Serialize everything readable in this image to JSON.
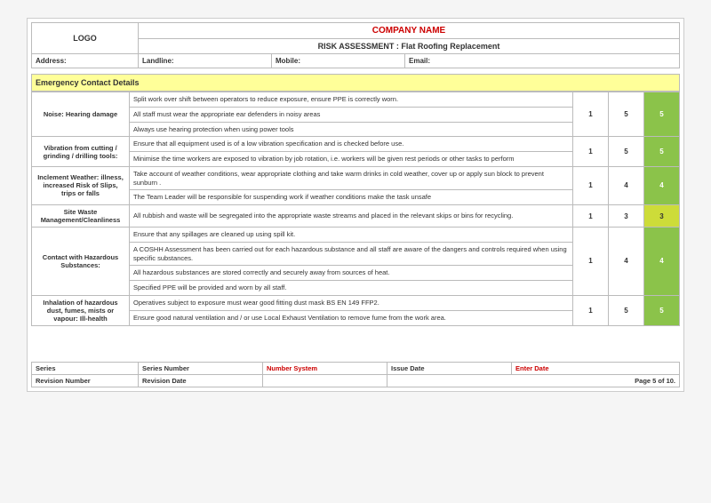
{
  "header": {
    "logo": "LOGO",
    "company": "COMPANY NAME",
    "title": "RISK ASSESSMENT : Flat Roofing Replacement",
    "address_lbl": "Address:",
    "landline_lbl": "Landline:",
    "mobile_lbl": "Mobile:",
    "email_lbl": "Email:"
  },
  "section": {
    "title": "Emergency Contact Details"
  },
  "rows": [
    {
      "hazard": "Noise: Hearing damage",
      "measures": [
        "Split work over shift between operators to reduce exposure, ensure PPE is correctly worn.",
        "All staff must wear the appropriate ear defenders in noisy areas",
        "Always use hearing protection when using power tools"
      ],
      "l": "1",
      "s": "5",
      "r": "5",
      "risk_class": "risk-green"
    },
    {
      "hazard": "Vibration from cutting / grinding / drilling tools:",
      "measures": [
        "Ensure that all equipment used is of a low vibration specification and is checked before use.",
        "Minimise the time workers are exposed to vibration by job rotation, i.e. workers will be given rest periods or other tasks to perform"
      ],
      "l": "1",
      "s": "5",
      "r": "5",
      "risk_class": "risk-green"
    },
    {
      "hazard": "Inclement Weather: illness, increased Risk of Slips, trips or falls",
      "measures": [
        "Take account of weather conditions, wear appropriate clothing and take warm drinks in cold weather, cover up or apply sun block to prevent sunburn .",
        "The Team Leader will be responsible for suspending work if weather conditions make the task unsafe"
      ],
      "l": "1",
      "s": "4",
      "r": "4",
      "risk_class": "risk-green"
    },
    {
      "hazard": "Site Waste Management/Cleanliness",
      "measures": [
        "All rubbish and waste will be segregated into the appropriate waste streams and placed in the relevant skips or bins for recycling."
      ],
      "l": "1",
      "s": "3",
      "r": "3",
      "risk_class": "risk-amber"
    },
    {
      "hazard": "Contact with Hazardous Substances:",
      "measures": [
        "Ensure that any spillages are cleaned up using spill kit.",
        "A COSHH Assessment has been carried out for each hazardous substance and all staff are aware of the dangers and controls required when using specific substances.",
        "All hazardous substances are stored correctly and securely away from sources of heat.",
        "Specified PPE will be provided and worn by all staff."
      ],
      "l": "1",
      "s": "4",
      "r": "4",
      "risk_class": "risk-green"
    },
    {
      "hazard": "Inhalation of hazardous dust, fumes, mists or vapour: Ill-health",
      "measures": [
        "Operatives subject to exposure must wear good fitting dust mask BS EN 149 FFP2.",
        "Ensure good natural ventilation and / or use Local Exhaust Ventilation to remove fume from the work area."
      ],
      "l": "1",
      "s": "5",
      "r": "5",
      "risk_class": "risk-green"
    }
  ],
  "footer": {
    "series_lbl": "Series",
    "series_num_lbl": "Series Number",
    "number_system_lbl": "Number System",
    "issue_date_lbl": "Issue Date",
    "enter_date_lbl": "Enter Date",
    "revision_num_lbl": "Revision Number",
    "revision_date_lbl": "Revision Date",
    "page": "Page 5 of 10."
  }
}
